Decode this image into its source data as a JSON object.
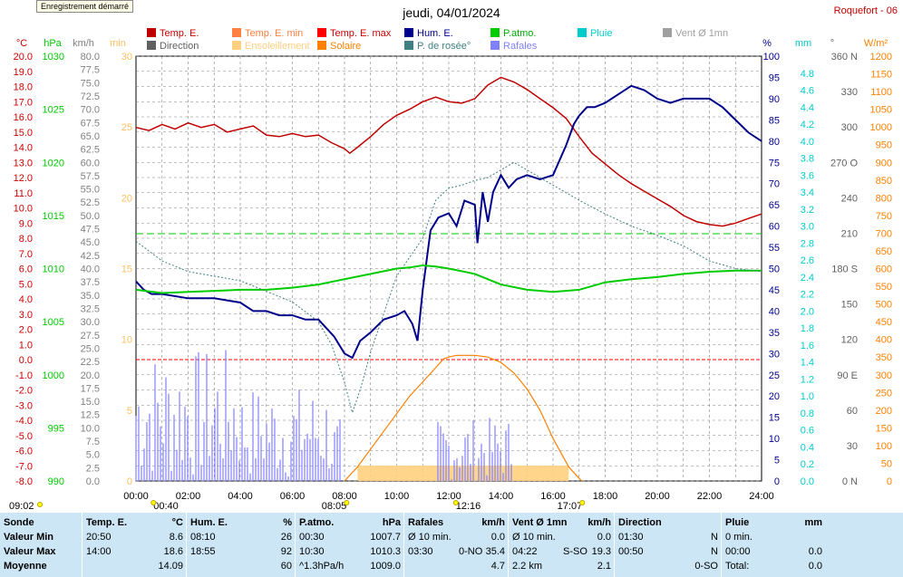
{
  "header": {
    "record_button": "Enregistrement démarré",
    "title": "jeudi, 04/01/2024",
    "station": "Roquefort - 06"
  },
  "legend": [
    {
      "label": "Temp. E.",
      "color": "#c00000"
    },
    {
      "label": "Temp. E. min",
      "color": "#ff8040"
    },
    {
      "label": "Temp. E. max",
      "color": "#ff0000"
    },
    {
      "label": "Hum. E.",
      "color": "#00008b"
    },
    {
      "label": "P.atmo.",
      "color": "#00cc00"
    },
    {
      "label": "Pluie",
      "color": "#00cccc"
    },
    {
      "label": "Vent Ø 1mn",
      "color": "#a0a0a0"
    },
    {
      "label": "Direction",
      "color": "#606060"
    },
    {
      "label": "Ensoleillement",
      "color": "#ffd080"
    },
    {
      "label": "Solaire",
      "color": "#ff8000"
    },
    {
      "label": "P. de rosée°",
      "color": "#408080"
    },
    {
      "label": "Rafales",
      "color": "#8080ff"
    }
  ],
  "axes": {
    "units": [
      "°C",
      "hPa",
      "km/h",
      "min",
      "%",
      "mm",
      "°",
      "W/m²"
    ],
    "temp_ticks": [
      "20.0",
      "19.0",
      "18.0",
      "17.0",
      "16.0",
      "15.0",
      "14.0",
      "13.0",
      "12.0",
      "11.0",
      "10.0",
      "9.0",
      "8.0",
      "7.0",
      "6.0",
      "5.0",
      "4.0",
      "3.0",
      "2.0",
      "1.0",
      "0.0",
      "-1.0",
      "-2.0",
      "-3.0",
      "-4.0",
      "-5.0",
      "-6.0",
      "-7.0",
      "-8.0"
    ],
    "hpa_ticks": [
      "1030",
      "1025",
      "1020",
      "1015",
      "1010",
      "1005",
      "1000",
      "995",
      "990"
    ],
    "kmh_ticks": [
      "80.0",
      "77.5",
      "75.0",
      "72.5",
      "70.0",
      "67.5",
      "65.0",
      "62.5",
      "60.0",
      "57.5",
      "55.0",
      "52.5",
      "50.0",
      "47.5",
      "45.0",
      "42.5",
      "40.0",
      "37.5",
      "35.0",
      "32.5",
      "30.0",
      "27.5",
      "25.0",
      "22.5",
      "20.0",
      "17.5",
      "15.0",
      "12.5",
      "10.0",
      "7.5",
      "5.0",
      "2.5",
      "0.0"
    ],
    "min_ticks": [
      "30",
      "25",
      "20",
      "15",
      "10",
      "5",
      "0"
    ],
    "pct_ticks": [
      "100",
      "95",
      "90",
      "85",
      "80",
      "75",
      "70",
      "65",
      "60",
      "55",
      "50",
      "45",
      "40",
      "35",
      "30",
      "25",
      "20",
      "15",
      "10",
      "5",
      "0"
    ],
    "mm_ticks": [
      "4.8",
      "4.6",
      "4.4",
      "4.2",
      "4.0",
      "3.8",
      "3.6",
      "3.4",
      "3.2",
      "3.0",
      "2.8",
      "2.6",
      "2.4",
      "2.2",
      "2.0",
      "1.8",
      "1.6",
      "1.4",
      "1.2",
      "1.0",
      "0.8",
      "0.6",
      "0.4",
      "0.2",
      "0.0"
    ],
    "deg_ticks": [
      "360 N",
      "330",
      "300",
      "270 O",
      "240",
      "210",
      "180 S",
      "150",
      "120",
      "90 E",
      "60",
      "30",
      "0 N"
    ],
    "wm2_ticks": [
      "1200",
      "1150",
      "1100",
      "1050",
      "1000",
      "950",
      "900",
      "850",
      "800",
      "750",
      "700",
      "650",
      "600",
      "550",
      "500",
      "450",
      "400",
      "350",
      "300",
      "250",
      "200",
      "150",
      "100",
      "50",
      "0"
    ],
    "time_ticks": [
      "00:00",
      "02:00",
      "04:00",
      "06:00",
      "08:00",
      "10:00",
      "12:00",
      "14:00",
      "16:00",
      "18:00",
      "20:00",
      "22:00",
      "24:00"
    ],
    "sun_times": {
      "rise_dawn": "09:02",
      "t0040": "00:40",
      "sunrise": "08:05",
      "noon": "12:16",
      "sunset": "17:07"
    }
  },
  "chart_data": {
    "type": "line",
    "title": "jeudi, 04/01/2024",
    "x_range": [
      "00:00",
      "24:00"
    ],
    "ylim_temp": [
      -8,
      20
    ],
    "ylim_hpa": [
      990,
      1030
    ],
    "ylim_pct": [
      0,
      100
    ],
    "ylim_wm2": [
      0,
      1200
    ],
    "series": [
      {
        "name": "Temp. E.",
        "unit": "°C",
        "color": "#c00000",
        "x": [
          0,
          0.5,
          1,
          1.5,
          2,
          2.5,
          3,
          3.5,
          4,
          4.5,
          5,
          5.5,
          6,
          6.5,
          7,
          7.5,
          8,
          8.2,
          8.5,
          9,
          9.5,
          10,
          10.5,
          11,
          11.5,
          12,
          12.5,
          13,
          13.5,
          14,
          14.5,
          15,
          15.5,
          16,
          16.5,
          17,
          17.5,
          18,
          18.5,
          19,
          19.5,
          20,
          20.5,
          21,
          21.5,
          22,
          22.5,
          23,
          23.5,
          24
        ],
        "y": [
          15.3,
          15.1,
          15.5,
          15.2,
          15.6,
          15.3,
          15.5,
          15.0,
          15.2,
          15.4,
          14.8,
          14.7,
          14.9,
          14.7,
          14.8,
          14.3,
          13.9,
          13.6,
          14.0,
          14.7,
          15.5,
          16.1,
          16.5,
          17.0,
          17.3,
          17.0,
          16.9,
          17.2,
          18.1,
          18.6,
          18.3,
          17.8,
          17.2,
          16.6,
          15.9,
          14.7,
          13.6,
          12.9,
          12.2,
          11.6,
          11.1,
          10.6,
          10.1,
          9.5,
          9.1,
          8.9,
          8.8,
          9.0,
          9.3,
          9.6
        ]
      },
      {
        "name": "Hum. E.",
        "unit": "%",
        "color": "#00008b",
        "x": [
          0,
          0.3,
          0.6,
          1,
          2,
          3,
          4,
          4.5,
          5,
          5.5,
          6,
          6.5,
          7,
          7.3,
          7.6,
          8,
          8.3,
          8.6,
          9,
          9.5,
          10,
          10.3,
          10.6,
          10.8,
          11,
          11.3,
          11.6,
          12,
          12.3,
          12.6,
          13,
          13.1,
          13.3,
          13.5,
          13.7,
          14,
          14.3,
          14.6,
          15,
          15.5,
          16,
          16.5,
          16.8,
          17,
          17.3,
          17.6,
          18,
          18.5,
          19,
          19.5,
          20,
          20.5,
          21,
          21.5,
          22,
          22.5,
          23,
          23.5,
          24
        ],
        "y": [
          47,
          45,
          44,
          44,
          43,
          43,
          42,
          40,
          40,
          39,
          39,
          38,
          38,
          36,
          34,
          30,
          29,
          33,
          35,
          38,
          39,
          40,
          37,
          33,
          45,
          59,
          62,
          63,
          60,
          66,
          65,
          56,
          68,
          61,
          68,
          72,
          69,
          71,
          72,
          71,
          72,
          79,
          84,
          86,
          88,
          88,
          89,
          91,
          93,
          92,
          90,
          89,
          90,
          90,
          90,
          88,
          85,
          82,
          80
        ]
      },
      {
        "name": "P.atmo.",
        "unit": "hPa",
        "color": "#00cc00",
        "x": [
          0,
          1,
          2,
          3,
          4,
          5,
          6,
          7,
          8,
          9,
          10,
          10.5,
          11,
          11.5,
          12,
          13,
          14,
          15,
          16,
          17,
          18,
          19,
          20,
          21,
          22,
          23,
          24
        ],
        "y": [
          1008,
          1007.7,
          1007.8,
          1007.9,
          1008,
          1008,
          1008.2,
          1008.5,
          1009,
          1009.5,
          1010,
          1010.1,
          1010.3,
          1010.2,
          1010,
          1009.5,
          1008.5,
          1008,
          1007.8,
          1008,
          1008.7,
          1009,
          1009.2,
          1009.5,
          1009.7,
          1009.8,
          1009.8
        ]
      },
      {
        "name": "P. de rosée°",
        "unit": "°C",
        "color": "#408080",
        "x": [
          0,
          1,
          2,
          3,
          4,
          5,
          6,
          7,
          7.5,
          8,
          8.3,
          8.6,
          9,
          9.5,
          10,
          11,
          11.5,
          12,
          12.5,
          13,
          13.5,
          14,
          14.5,
          15,
          16,
          17,
          18,
          19,
          20,
          21,
          22,
          23,
          24
        ],
        "y": [
          7.8,
          6.5,
          5.8,
          5.5,
          5.2,
          4.5,
          3.8,
          2.5,
          1.0,
          -1.5,
          -3.5,
          -2.0,
          0.5,
          3.0,
          5.5,
          8.0,
          10.5,
          11.3,
          11.5,
          11.8,
          12.0,
          12.5,
          13.0,
          12.5,
          11.5,
          10.5,
          9.6,
          8.8,
          8.2,
          7.5,
          6.5,
          6.0,
          5.8
        ]
      },
      {
        "name": "Solaire",
        "unit": "W/m²",
        "color": "#ff8000",
        "x": [
          8.0,
          8.5,
          9,
          9.5,
          10,
          10.5,
          11,
          11.5,
          11.8,
          12.0,
          12.3,
          12.5,
          13,
          13.5,
          14,
          14.5,
          15,
          15.5,
          16,
          16.3,
          16.6,
          16.9,
          17.1
        ],
        "y": [
          0,
          40,
          90,
          140,
          190,
          240,
          280,
          320,
          345,
          350,
          355,
          355,
          355,
          350,
          335,
          305,
          260,
          200,
          120,
          80,
          40,
          15,
          0
        ]
      }
    ]
  },
  "stats": {
    "columns": [
      {
        "header": "Sonde",
        "unit": "",
        "rows": [
          "Valeur Min",
          "Valeur Max",
          "Moyenne"
        ]
      },
      {
        "header": "Temp. E.",
        "unit": "°C",
        "rows": [
          [
            "20:50",
            "8.6"
          ],
          [
            "14:00",
            "18.6"
          ],
          [
            "",
            "14.09"
          ]
        ]
      },
      {
        "header": "Hum. E.",
        "unit": "%",
        "rows": [
          [
            "08:10",
            "26"
          ],
          [
            "18:55",
            "92"
          ],
          [
            "",
            "60"
          ]
        ]
      },
      {
        "header": "P.atmo.",
        "unit": "hPa",
        "rows": [
          [
            "00:30",
            "1007.7"
          ],
          [
            "10:30",
            "1010.3"
          ],
          [
            "^1.3hPa/h",
            "1009.0"
          ]
        ]
      },
      {
        "header": "Rafales",
        "unit": "km/h",
        "rows": [
          [
            "Ø 10 min.",
            "",
            "0.0"
          ],
          [
            "03:30",
            "0-NO",
            "35.4"
          ],
          [
            "",
            "",
            "4.7"
          ]
        ]
      },
      {
        "header": "Vent Ø 1mn",
        "unit": "km/h",
        "rows": [
          [
            "Ø 10 min.",
            "",
            "0.0"
          ],
          [
            "04:22",
            "S-SO",
            "19.3"
          ],
          [
            "2.2 km",
            "",
            "2.1"
          ]
        ]
      },
      {
        "header": "Direction",
        "unit": "",
        "rows": [
          [
            "01:30",
            "N"
          ],
          [
            "00:50",
            "N"
          ],
          [
            "",
            "0-SO"
          ]
        ]
      },
      {
        "header": "Pluie",
        "unit": "mm",
        "rows": [
          [
            "0 min.",
            ""
          ],
          [
            "00:00",
            "0.0"
          ],
          [
            "Total:",
            "0.0"
          ]
        ]
      }
    ]
  }
}
